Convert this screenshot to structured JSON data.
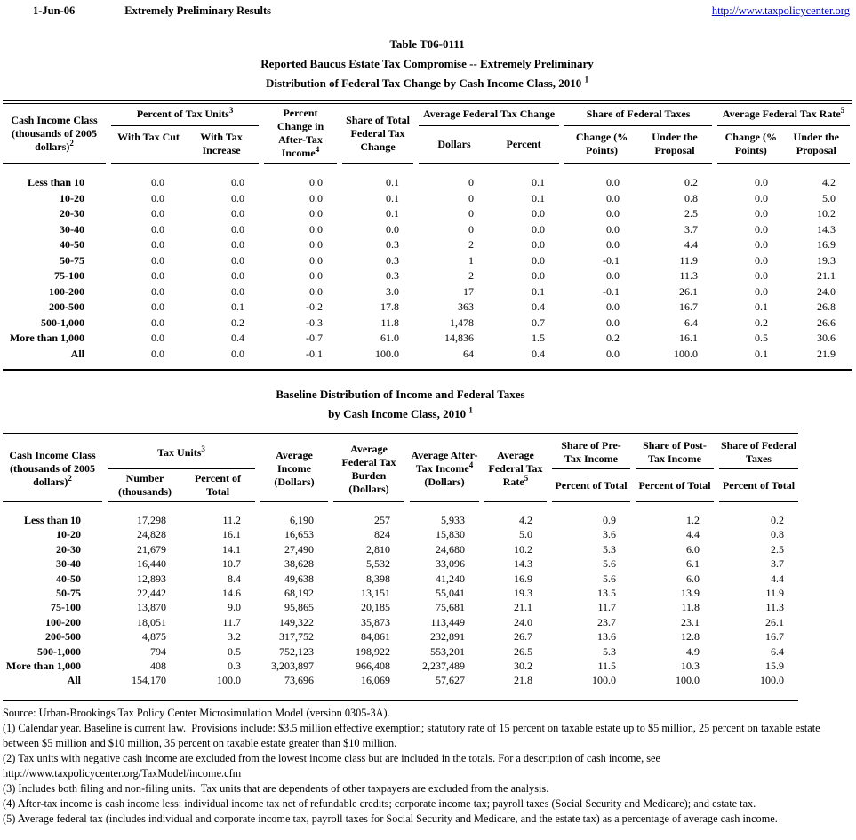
{
  "page_header": {
    "date": "1-Jun-06",
    "status": "Extremely Preliminary Results",
    "link": "http://www.taxpolicycenter.org"
  },
  "colors": {
    "link_blue": "#0000cc",
    "text": "#000000",
    "background": "#ffffff"
  },
  "table1": {
    "titles": {
      "line1": "Table T06-0111",
      "line2": "Reported Baucus Estate Tax Compromise -- Extremely Preliminary",
      "line3": "Distribution of Federal Tax Change by Cash Income Class, 2010",
      "line3_sup": "1"
    },
    "header": {
      "income_class": {
        "label": "Cash Income Class (thousands of 2005 dollars)",
        "sup": "2"
      },
      "pct_tax_units": {
        "label": "Percent of Tax Units",
        "sup": "3",
        "subs": [
          "With Tax Cut",
          "With Tax Increase"
        ]
      },
      "pct_change_after_tax": {
        "label": "Percent Change in After-Tax Income",
        "sup": "4"
      },
      "share_total": {
        "label": "Share of Total Federal Tax Change"
      },
      "avg_change": {
        "label": "Average Federal Tax Change",
        "subs": [
          "Dollars",
          "Percent"
        ]
      },
      "share_fed": {
        "label": "Share of Federal Taxes",
        "subs": [
          "Change (% Points)",
          "Under the Proposal"
        ]
      },
      "avg_rate": {
        "label": "Average Federal Tax Rate",
        "sup": "5",
        "subs": [
          "Change (% Points)",
          "Under the Proposal"
        ]
      }
    },
    "rows": [
      [
        "Less than 10",
        "0.0",
        "0.0",
        "0.0",
        "0.1",
        "0",
        "0.1",
        "0.0",
        "0.2",
        "0.0",
        "4.2"
      ],
      [
        "10-20",
        "0.0",
        "0.0",
        "0.0",
        "0.1",
        "0",
        "0.1",
        "0.0",
        "0.8",
        "0.0",
        "5.0"
      ],
      [
        "20-30",
        "0.0",
        "0.0",
        "0.0",
        "0.1",
        "0",
        "0.0",
        "0.0",
        "2.5",
        "0.0",
        "10.2"
      ],
      [
        "30-40",
        "0.0",
        "0.0",
        "0.0",
        "0.0",
        "0",
        "0.0",
        "0.0",
        "3.7",
        "0.0",
        "14.3"
      ],
      [
        "40-50",
        "0.0",
        "0.0",
        "0.0",
        "0.3",
        "2",
        "0.0",
        "0.0",
        "4.4",
        "0.0",
        "16.9"
      ],
      [
        "50-75",
        "0.0",
        "0.0",
        "0.0",
        "0.3",
        "1",
        "0.0",
        "-0.1",
        "11.9",
        "0.0",
        "19.3"
      ],
      [
        "75-100",
        "0.0",
        "0.0",
        "0.0",
        "0.3",
        "2",
        "0.0",
        "0.0",
        "11.3",
        "0.0",
        "21.1"
      ],
      [
        "100-200",
        "0.0",
        "0.0",
        "0.0",
        "3.0",
        "17",
        "0.1",
        "-0.1",
        "26.1",
        "0.0",
        "24.0"
      ],
      [
        "200-500",
        "0.0",
        "0.1",
        "-0.2",
        "17.8",
        "363",
        "0.4",
        "0.0",
        "16.7",
        "0.1",
        "26.8"
      ],
      [
        "500-1,000",
        "0.0",
        "0.2",
        "-0.3",
        "11.8",
        "1,478",
        "0.7",
        "0.0",
        "6.4",
        "0.2",
        "26.6"
      ],
      [
        "More than 1,000",
        "0.0",
        "0.4",
        "-0.7",
        "61.0",
        "14,836",
        "1.5",
        "0.2",
        "16.1",
        "0.5",
        "30.6"
      ],
      [
        "All",
        "0.0",
        "0.0",
        "-0.1",
        "100.0",
        "64",
        "0.4",
        "0.0",
        "100.0",
        "0.1",
        "21.9"
      ]
    ]
  },
  "table2": {
    "titles": {
      "line1": "Baseline Distribution of Income and Federal Taxes",
      "line2": "by Cash Income Class, 2010",
      "line2_sup": "1"
    },
    "header": {
      "income_class": {
        "label": "Cash Income Class (thousands of 2005 dollars)",
        "sup": "2"
      },
      "tax_units": {
        "label": "Tax Units",
        "sup": "3",
        "subs": [
          "Number (thousands)",
          "Percent of Total"
        ]
      },
      "avg_income": {
        "label": "Average Income (Dollars)"
      },
      "burden": {
        "label": "Average Federal Tax Burden (Dollars)"
      },
      "after_tax": {
        "pre": "Average After-Tax Income",
        "sup": "4",
        "post": " (Dollars)"
      },
      "avg_rate": {
        "label": "Average Federal Tax Rate",
        "sup": "5"
      },
      "pre_tax": {
        "label": "Share of Pre-Tax Income",
        "sub": "Percent of Total"
      },
      "post_tax": {
        "label": "Share of Post-Tax Income",
        "sub": "Percent of Total"
      },
      "fed_taxes": {
        "label": "Share of Federal Taxes",
        "sub": "Percent of Total"
      }
    },
    "rows": [
      [
        "Less than 10",
        "17,298",
        "11.2",
        "6,190",
        "257",
        "5,933",
        "4.2",
        "0.9",
        "1.2",
        "0.2"
      ],
      [
        "10-20",
        "24,828",
        "16.1",
        "16,653",
        "824",
        "15,830",
        "5.0",
        "3.6",
        "4.4",
        "0.8"
      ],
      [
        "20-30",
        "21,679",
        "14.1",
        "27,490",
        "2,810",
        "24,680",
        "10.2",
        "5.3",
        "6.0",
        "2.5"
      ],
      [
        "30-40",
        "16,440",
        "10.7",
        "38,628",
        "5,532",
        "33,096",
        "14.3",
        "5.6",
        "6.1",
        "3.7"
      ],
      [
        "40-50",
        "12,893",
        "8.4",
        "49,638",
        "8,398",
        "41,240",
        "16.9",
        "5.6",
        "6.0",
        "4.4"
      ],
      [
        "50-75",
        "22,442",
        "14.6",
        "68,192",
        "13,151",
        "55,041",
        "19.3",
        "13.5",
        "13.9",
        "11.9"
      ],
      [
        "75-100",
        "13,870",
        "9.0",
        "95,865",
        "20,185",
        "75,681",
        "21.1",
        "11.7",
        "11.8",
        "11.3"
      ],
      [
        "100-200",
        "18,051",
        "11.7",
        "149,322",
        "35,873",
        "113,449",
        "24.0",
        "23.7",
        "23.1",
        "26.1"
      ],
      [
        "200-500",
        "4,875",
        "3.2",
        "317,752",
        "84,861",
        "232,891",
        "26.7",
        "13.6",
        "12.8",
        "16.7"
      ],
      [
        "500-1,000",
        "794",
        "0.5",
        "752,123",
        "198,922",
        "553,201",
        "26.5",
        "5.3",
        "4.9",
        "6.4"
      ],
      [
        "More than 1,000",
        "408",
        "0.3",
        "3,203,897",
        "966,408",
        "2,237,489",
        "30.2",
        "11.5",
        "10.3",
        "15.9"
      ],
      [
        "All",
        "154,170",
        "100.0",
        "73,696",
        "16,069",
        "57,627",
        "21.8",
        "100.0",
        "100.0",
        "100.0"
      ]
    ]
  },
  "footnotes": [
    "Source: Urban-Brookings Tax Policy Center Microsimulation Model (version 0305-3A).",
    "(1) Calendar year. Baseline is current law.  Provisions include: $3.5 million effective exemption; statutory rate of 15 percent on taxable estate up to $5 million, 25 percent on taxable estate between $5 million and $10 million, 35 percent on taxable estate greater than $10 million.",
    "(2) Tax units with negative cash income are excluded from the lowest income class but are included in the totals. For a description of cash income, see\nhttp://www.taxpolicycenter.org/TaxModel/income.cfm",
    "(3) Includes both filing and non-filing units.  Tax units that are dependents of other taxpayers are excluded from the analysis.",
    "(4) After-tax income is cash income less: individual income tax net of refundable credits; corporate income tax; payroll taxes (Social Security and Medicare); and estate tax.",
    "(5) Average federal tax (includes individual and corporate income tax, payroll taxes for Social Security and Medicare, and the estate tax) as a percentage of average cash income."
  ]
}
